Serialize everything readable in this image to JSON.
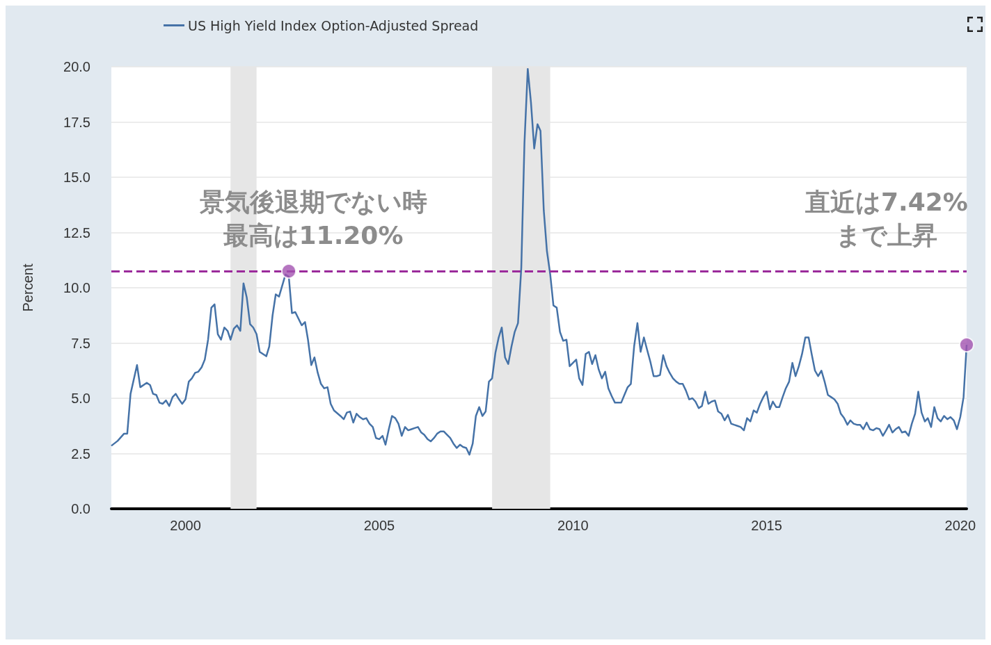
{
  "chart_data": {
    "type": "line",
    "ylabel": "Percent",
    "legend": "top left",
    "grid": "y",
    "xlim": [
      "1998-02",
      "2020-03"
    ],
    "xticks": [
      "2000",
      "2005",
      "2010",
      "2015",
      "2020"
    ],
    "ylim": [
      0,
      20
    ],
    "yticks": [
      {
        "value": 0,
        "label": "0.0"
      },
      {
        "value": 2.5,
        "label": "2.5"
      },
      {
        "value": 5,
        "label": "5.0"
      },
      {
        "value": 7.5,
        "label": "7.5"
      },
      {
        "value": 10,
        "label": "10.0"
      },
      {
        "value": 12.5,
        "label": "12.5"
      },
      {
        "value": 15,
        "label": "15.0"
      },
      {
        "value": 17.5,
        "label": "17.5"
      },
      {
        "value": 20,
        "label": "20.0"
      }
    ],
    "annotations": [
      "景気後退期でない時",
      "最高は11.20%",
      "直近は7.42%",
      "まで上昇"
    ],
    "bands": [
      {
        "axis": "x",
        "from": "2001-03",
        "to": "2001-11",
        "color": "#e6e6e6"
      },
      {
        "axis": "x",
        "from": "2007-12",
        "to": "2009-06",
        "color": "#e6e6e6"
      }
    ],
    "ref_lines": [
      {
        "axis": "y",
        "value": 10.75,
        "color": "#9b2a9b",
        "line_style": "dashed"
      }
    ],
    "series": [
      {
        "name": "US High Yield Index Option-Adjusted Spread",
        "color": "#4572a7",
        "x": [
          "1998-02",
          "1998-04",
          "1998-06",
          "1998-07",
          "1998-08",
          "1998-10",
          "1998-11",
          "1999-01",
          "1999-02",
          "1999-03",
          "1999-04",
          "1999-05",
          "1999-06",
          "1999-07",
          "1999-08",
          "1999-09",
          "1999-10",
          "1999-11",
          "1999-12",
          "2000-01",
          "2000-02",
          "2000-03",
          "2000-04",
          "2000-05",
          "2000-06",
          "2000-07",
          "2000-08",
          "2000-09",
          "2000-10",
          "2000-11",
          "2000-12",
          "2001-01",
          "2001-02",
          "2001-03",
          "2001-04",
          "2001-05",
          "2001-06",
          "2001-07",
          "2001-08",
          "2001-09",
          "2001-10",
          "2001-11",
          "2001-12",
          "2002-02",
          "2002-03",
          "2002-04",
          "2002-05",
          "2002-06",
          "2002-08",
          "2002-09",
          "2002-10",
          "2002-11",
          "2003-01",
          "2003-02",
          "2003-03",
          "2003-04",
          "2003-05",
          "2003-06",
          "2003-07",
          "2003-08",
          "2003-09",
          "2003-10",
          "2003-11",
          "2004-01",
          "2004-02",
          "2004-03",
          "2004-04",
          "2004-05",
          "2004-06",
          "2004-07",
          "2004-08",
          "2004-09",
          "2004-10",
          "2004-11",
          "2004-12",
          "2005-01",
          "2005-02",
          "2005-03",
          "2005-04",
          "2005-05",
          "2005-06",
          "2005-07",
          "2005-08",
          "2005-09",
          "2005-10",
          "2005-11",
          "2005-12",
          "2006-01",
          "2006-02",
          "2006-03",
          "2006-04",
          "2006-05",
          "2006-06",
          "2006-07",
          "2006-08",
          "2006-09",
          "2006-10",
          "2006-11",
          "2006-12",
          "2007-01",
          "2007-02",
          "2007-03",
          "2007-04",
          "2007-05",
          "2007-06",
          "2007-07",
          "2007-08",
          "2007-09",
          "2007-10",
          "2007-11",
          "2007-12",
          "2008-01",
          "2008-02",
          "2008-03",
          "2008-04",
          "2008-05",
          "2008-06",
          "2008-07",
          "2008-08",
          "2008-09",
          "2008-10",
          "2008-11",
          "2008-12",
          "2009-01",
          "2009-02",
          "2009-03",
          "2009-04",
          "2009-05",
          "2009-06",
          "2009-07",
          "2009-08",
          "2009-09",
          "2009-10",
          "2009-11",
          "2009-12",
          "2010-01",
          "2010-02",
          "2010-03",
          "2010-04",
          "2010-05",
          "2010-06",
          "2010-07",
          "2010-08",
          "2010-09",
          "2010-10",
          "2010-11",
          "2010-12",
          "2011-01",
          "2011-02",
          "2011-03",
          "2011-04",
          "2011-05",
          "2011-06",
          "2011-07",
          "2011-08",
          "2011-09",
          "2011-10",
          "2011-11",
          "2011-12",
          "2012-01",
          "2012-02",
          "2012-03",
          "2012-04",
          "2012-05",
          "2012-06",
          "2012-07",
          "2012-08",
          "2012-09",
          "2012-10",
          "2012-11",
          "2012-12",
          "2013-01",
          "2013-02",
          "2013-03",
          "2013-04",
          "2013-05",
          "2013-06",
          "2013-07",
          "2013-08",
          "2013-09",
          "2013-10",
          "2013-11",
          "2013-12",
          "2014-01",
          "2014-02",
          "2014-03",
          "2014-04",
          "2014-05",
          "2014-06",
          "2014-07",
          "2014-08",
          "2014-09",
          "2014-10",
          "2014-11",
          "2014-12",
          "2015-01",
          "2015-02",
          "2015-03",
          "2015-04",
          "2015-05",
          "2015-06",
          "2015-07",
          "2015-08",
          "2015-09",
          "2015-10",
          "2015-11",
          "2015-12",
          "2016-01",
          "2016-02",
          "2016-03",
          "2016-04",
          "2016-05",
          "2016-06",
          "2016-07",
          "2016-08",
          "2016-09",
          "2016-10",
          "2016-11",
          "2016-12",
          "2017-01",
          "2017-02",
          "2017-03",
          "2017-04",
          "2017-05",
          "2017-06",
          "2017-07",
          "2017-08",
          "2017-09",
          "2017-10",
          "2017-11",
          "2017-12",
          "2018-01",
          "2018-02",
          "2018-03",
          "2018-04",
          "2018-05",
          "2018-06",
          "2018-07",
          "2018-08",
          "2018-09",
          "2018-10",
          "2018-11",
          "2018-12",
          "2019-01",
          "2019-02",
          "2019-03",
          "2019-04",
          "2019-05",
          "2019-06",
          "2019-07",
          "2019-08",
          "2019-09",
          "2019-10",
          "2019-11",
          "2019-12",
          "2020-01",
          "2020-02",
          "2020-03"
        ],
        "values": [
          2.85,
          3.07,
          3.4,
          3.4,
          5.2,
          6.5,
          5.5,
          5.7,
          5.6,
          5.2,
          5.15,
          4.8,
          4.75,
          4.9,
          4.65,
          5.05,
          5.2,
          4.95,
          4.75,
          4.95,
          5.75,
          5.9,
          6.15,
          6.2,
          6.4,
          6.75,
          7.65,
          9.1,
          9.25,
          7.9,
          7.65,
          8.2,
          8.05,
          7.65,
          8.15,
          8.3,
          8.05,
          10.2,
          9.55,
          8.35,
          8.2,
          7.9,
          7.1,
          6.9,
          7.35,
          8.75,
          9.7,
          9.6,
          10.6,
          10.5,
          8.85,
          8.9,
          8.3,
          8.45,
          7.65,
          6.5,
          6.85,
          6.15,
          5.65,
          5.45,
          5.5,
          4.75,
          4.45,
          4.2,
          4.05,
          4.35,
          4.4,
          3.9,
          4.3,
          4.15,
          4.05,
          4.1,
          3.85,
          3.7,
          3.2,
          3.15,
          3.3,
          2.9,
          3.6,
          4.2,
          4.1,
          3.85,
          3.3,
          3.7,
          3.55,
          3.6,
          3.65,
          3.7,
          3.45,
          3.35,
          3.15,
          3.05,
          3.2,
          3.4,
          3.5,
          3.5,
          3.35,
          3.2,
          2.95,
          2.75,
          2.9,
          2.8,
          2.75,
          2.45,
          2.95,
          4.2,
          4.6,
          4.2,
          4.4,
          5.75,
          5.9,
          7.05,
          7.75,
          8.2,
          6.85,
          6.55,
          7.35,
          8.0,
          8.4,
          10.9,
          16.55,
          19.9,
          18.4,
          16.3,
          17.4,
          17.1,
          13.5,
          11.65,
          10.6,
          9.2,
          9.1,
          8.0,
          7.6,
          7.65,
          6.45,
          6.6,
          6.75,
          5.9,
          5.6,
          7.0,
          7.1,
          6.55,
          6.95,
          6.3,
          5.9,
          6.2,
          5.45,
          5.1,
          4.8,
          4.8,
          4.8,
          5.15,
          5.5,
          5.65,
          7.35,
          8.4,
          7.1,
          7.75,
          7.2,
          6.65,
          6.0,
          6.0,
          6.05,
          6.95,
          6.45,
          6.15,
          5.9,
          5.75,
          5.65,
          5.65,
          5.35,
          4.95,
          5.0,
          4.85,
          4.55,
          4.65,
          5.3,
          4.75,
          4.85,
          4.9,
          4.4,
          4.3,
          4.0,
          4.25,
          3.85,
          3.8,
          3.75,
          3.7,
          3.55,
          4.1,
          3.95,
          4.45,
          4.35,
          4.75,
          5.05,
          5.3,
          4.5,
          4.85,
          4.6,
          4.6,
          5.05,
          5.45,
          5.75,
          6.6,
          6.0,
          6.45,
          7.0,
          7.75,
          7.75,
          7.0,
          6.25,
          6.0,
          6.25,
          5.75,
          5.15,
          5.05,
          4.95,
          4.75,
          4.3,
          4.1,
          3.8,
          4.0,
          3.85,
          3.8,
          3.8,
          3.6,
          3.9,
          3.6,
          3.55,
          3.65,
          3.6,
          3.3,
          3.55,
          3.8,
          3.45,
          3.6,
          3.7,
          3.45,
          3.5,
          3.3,
          3.85,
          4.3,
          5.3,
          4.35,
          3.95,
          4.1,
          3.7,
          4.6,
          4.1,
          3.95,
          4.2,
          4.05,
          4.15,
          4.0,
          3.6,
          4.15,
          5.05,
          7.42
        ]
      },
      {
        "type": "scatter",
        "color": "#a352b0",
        "marker": "circle",
        "x": [
          "2002-09",
          "2020-03"
        ],
        "values": [
          10.75,
          7.42
        ]
      }
    ]
  }
}
